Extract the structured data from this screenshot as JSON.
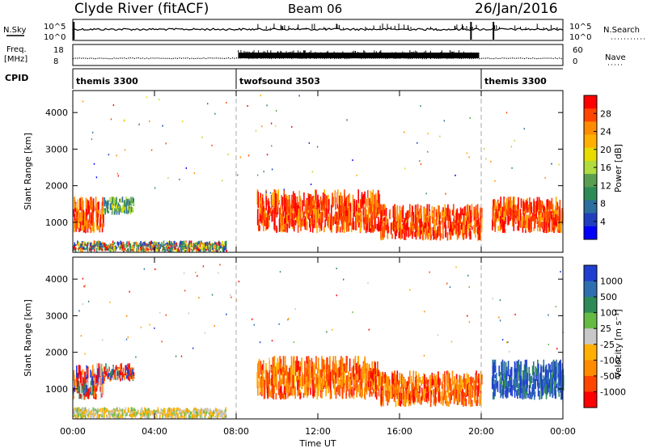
{
  "header": {
    "station": "Clyde River (fitACF)",
    "beam": "Beam 06",
    "date": "26/Jan/2016"
  },
  "strips": {
    "nsky_label": "N.Sky",
    "nsearch_label": "N.Search",
    "nsky_ticks": [
      "10^5",
      "10^0"
    ],
    "nsearch_ticks": [
      "10^5",
      "10^0"
    ],
    "freq_label_line1": "Freq.",
    "freq_label_line2": "[MHz]",
    "freq_ticks": [
      "18",
      "8"
    ],
    "nave_label": "Nave",
    "nave_ticks": [
      "60",
      "0"
    ],
    "cpid_label": "CPID"
  },
  "cpid_segments": [
    {
      "name": "themis 3300",
      "start_h": 0,
      "end_h": 8.0
    },
    {
      "name": "twofsound 3503",
      "start_h": 8.0,
      "end_h": 20.0
    },
    {
      "name": "themis 3300",
      "start_h": 20.0,
      "end_h": 24.0
    }
  ],
  "chart_data": [
    {
      "type": "heatmap",
      "title": "Power",
      "xlabel": "Time UT",
      "ylabel": "Slant Range [km]",
      "xlim": [
        0,
        24
      ],
      "ylim": [
        180,
        4600
      ],
      "xticks": [
        "00:00",
        "04:00",
        "08:00",
        "12:00",
        "16:00",
        "20:00",
        "00:00"
      ],
      "yticks": [
        1000,
        2000,
        3000,
        4000
      ],
      "colorbar": {
        "label": "Power [dB]",
        "ticks": [
          "28",
          "24",
          "20",
          "16",
          "12",
          "8",
          "4"
        ],
        "colors": [
          "#ff0000",
          "#ff4500",
          "#ff8c00",
          "#ffb000",
          "#e6dc00",
          "#b0dc40",
          "#5a9e50",
          "#2e8b57",
          "#2c6e9e",
          "#1f3fbf",
          "#0000ff"
        ]
      },
      "regions": [
        {
          "start_h": 0.0,
          "end_h": 1.5,
          "range_min_km": 700,
          "range_max_km": 1700,
          "level": "high"
        },
        {
          "start_h": 1.5,
          "end_h": 3.0,
          "range_min_km": 1200,
          "range_max_km": 1700,
          "level": "mid"
        },
        {
          "start_h": 0.0,
          "end_h": 7.5,
          "range_min_km": 180,
          "range_max_km": 500,
          "level": "mixed"
        },
        {
          "start_h": 9.0,
          "end_h": 15.0,
          "range_min_km": 700,
          "range_max_km": 1900,
          "level": "high"
        },
        {
          "start_h": 15.0,
          "end_h": 20.0,
          "range_min_km": 500,
          "range_max_km": 1500,
          "level": "high"
        },
        {
          "start_h": 20.5,
          "end_h": 24.0,
          "range_min_km": 700,
          "range_max_km": 1700,
          "level": "high"
        }
      ]
    },
    {
      "type": "heatmap",
      "title": "Velocity",
      "xlabel": "Time UT",
      "ylabel": "Slant Range [km]",
      "xlim": [
        0,
        24
      ],
      "ylim": [
        180,
        4600
      ],
      "xticks": [
        "00:00",
        "04:00",
        "08:00",
        "12:00",
        "16:00",
        "20:00",
        "00:00"
      ],
      "yticks": [
        1000,
        2000,
        3000,
        4000
      ],
      "colorbar": {
        "label": "Velocity [m s⁻¹]",
        "ticks": [
          "1000",
          "500",
          "100",
          "25",
          "-25",
          "-100",
          "-500",
          "-1000"
        ],
        "colors": [
          "#1f3fd0",
          "#2f6fb0",
          "#2e8b57",
          "#66bb44",
          "#c8c8c8",
          "#ffb000",
          "#ff8c00",
          "#ff4500",
          "#ff0000"
        ]
      },
      "regions": [
        {
          "start_h": 0.0,
          "end_h": 1.5,
          "range_min_km": 700,
          "range_max_km": 1700,
          "level": "mixed"
        },
        {
          "start_h": 1.5,
          "end_h": 3.0,
          "range_min_km": 1200,
          "range_max_km": 1700,
          "level": "mixed"
        },
        {
          "start_h": 0.0,
          "end_h": 7.5,
          "range_min_km": 180,
          "range_max_km": 500,
          "level": "ground"
        },
        {
          "start_h": 9.0,
          "end_h": 15.0,
          "range_min_km": 700,
          "range_max_km": 1900,
          "level": "away"
        },
        {
          "start_h": 15.0,
          "end_h": 20.0,
          "range_min_km": 500,
          "range_max_km": 1500,
          "level": "away"
        },
        {
          "start_h": 20.5,
          "end_h": 24.0,
          "range_min_km": 700,
          "range_max_km": 1800,
          "level": "toward"
        }
      ]
    }
  ]
}
